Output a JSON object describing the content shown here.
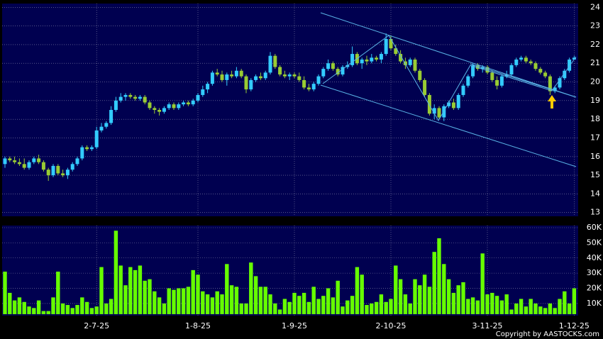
{
  "chart_data": {
    "type": "candlestick",
    "copyright": "Copyright by AASTOCKS.com",
    "categories": [
      null,
      null,
      null,
      null,
      null,
      null,
      null,
      null,
      null,
      null,
      null,
      null,
      null,
      null,
      null,
      null,
      null,
      null,
      null,
      "2-7-25",
      null,
      null,
      null,
      null,
      null,
      null,
      null,
      null,
      null,
      null,
      null,
      null,
      null,
      null,
      null,
      null,
      null,
      null,
      null,
      null,
      "1-8-25",
      null,
      null,
      null,
      null,
      null,
      null,
      null,
      null,
      null,
      null,
      null,
      null,
      null,
      null,
      null,
      null,
      null,
      null,
      null,
      "1-9-25",
      null,
      null,
      null,
      null,
      null,
      null,
      null,
      null,
      null,
      null,
      null,
      null,
      null,
      null,
      null,
      null,
      null,
      null,
      null,
      "2-10-25",
      null,
      null,
      null,
      null,
      null,
      null,
      null,
      null,
      null,
      null,
      null,
      null,
      null,
      null,
      null,
      null,
      null,
      null,
      null,
      "3-11-25",
      null,
      null,
      null,
      null,
      null,
      null,
      null,
      null,
      null,
      null,
      null,
      null,
      null,
      null,
      null,
      null,
      null,
      "1-12-25"
    ],
    "open": [
      15.6,
      15.9,
      15.8,
      15.7,
      15.6,
      15.4,
      15.7,
      15.9,
      15.7,
      15.3,
      15.0,
      15.5,
      15.1,
      15.0,
      15.3,
      15.6,
      15.9,
      16.5,
      16.4,
      16.5,
      17.4,
      17.6,
      17.8,
      18.5,
      19.0,
      19.2,
      19.3,
      19.2,
      19.1,
      19.2,
      18.9,
      18.6,
      18.5,
      18.4,
      18.6,
      18.8,
      18.6,
      18.8,
      18.9,
      18.8,
      19.0,
      19.3,
      19.6,
      19.9,
      20.5,
      20.4,
      20.1,
      20.4,
      20.3,
      20.6,
      20.3,
      19.6,
      20.1,
      20.3,
      20.2,
      20.5,
      21.4,
      20.8,
      20.4,
      20.3,
      20.4,
      20.3,
      20.1,
      19.7,
      19.6,
      19.9,
      20.3,
      20.7,
      21.0,
      20.7,
      20.4,
      20.8,
      20.9,
      21.5,
      21.0,
      21.2,
      21.1,
      21.3,
      21.2,
      21.5,
      22.3,
      21.8,
      21.5,
      21.1,
      20.9,
      21.2,
      20.6,
      20.1,
      19.3,
      18.3,
      18.6,
      18.1,
      18.7,
      18.9,
      18.6,
      19.3,
      19.8,
      20.3,
      20.9,
      20.7,
      20.8,
      20.5,
      20.1,
      19.8,
      20.3,
      20.4,
      20.9,
      21.2,
      21.3,
      21.1,
      21.0,
      20.7,
      20.5,
      20.3,
      19.5,
      19.7,
      20.2,
      20.6,
      21.2
    ],
    "high": [
      16.0,
      16.0,
      16.0,
      15.9,
      15.9,
      15.8,
      16.0,
      16.1,
      15.8,
      15.4,
      15.6,
      15.6,
      15.3,
      15.4,
      15.7,
      16.0,
      16.6,
      16.6,
      16.6,
      17.6,
      17.8,
      17.9,
      18.7,
      19.2,
      19.4,
      19.4,
      19.4,
      19.3,
      19.3,
      19.3,
      19.0,
      18.7,
      18.6,
      18.7,
      18.9,
      18.9,
      18.9,
      19.0,
      19.0,
      19.1,
      19.4,
      19.8,
      20.0,
      20.6,
      20.7,
      20.6,
      20.5,
      20.6,
      20.8,
      20.7,
      20.4,
      20.2,
      20.4,
      20.5,
      20.6,
      21.6,
      21.5,
      20.9,
      20.6,
      20.5,
      20.5,
      20.5,
      20.3,
      19.9,
      20.0,
      20.4,
      20.8,
      21.2,
      21.1,
      20.8,
      20.9,
      21.1,
      21.9,
      21.6,
      21.3,
      21.4,
      21.5,
      21.4,
      21.6,
      22.6,
      22.5,
      22.0,
      21.7,
      21.3,
      21.3,
      21.3,
      20.7,
      20.2,
      19.4,
      18.8,
      18.7,
      18.8,
      19.0,
      19.1,
      19.4,
      19.9,
      20.4,
      21.0,
      21.0,
      20.9,
      20.9,
      20.6,
      20.3,
      20.4,
      20.6,
      21.0,
      21.3,
      21.4,
      21.4,
      21.2,
      21.1,
      20.8,
      20.6,
      20.4,
      19.8,
      20.3,
      20.7,
      21.3,
      21.4
    ],
    "low": [
      15.4,
      15.7,
      15.6,
      15.5,
      15.3,
      15.3,
      15.6,
      15.6,
      15.2,
      14.7,
      14.9,
      15.0,
      14.9,
      14.8,
      15.2,
      15.5,
      15.8,
      16.3,
      16.3,
      16.4,
      17.3,
      17.5,
      17.7,
      18.4,
      18.9,
      19.0,
      19.1,
      19.0,
      19.0,
      18.8,
      18.5,
      18.3,
      18.2,
      18.3,
      18.5,
      18.5,
      18.5,
      18.7,
      18.7,
      18.7,
      18.9,
      19.2,
      19.4,
      19.8,
      20.3,
      20.0,
      19.8,
      20.2,
      20.2,
      20.2,
      19.4,
      19.5,
      20.0,
      20.1,
      20.1,
      20.4,
      20.7,
      20.3,
      20.2,
      20.1,
      20.2,
      20.0,
      19.6,
      19.5,
      19.5,
      19.8,
      20.2,
      20.6,
      20.6,
      20.3,
      20.3,
      20.7,
      20.8,
      20.9,
      20.7,
      20.9,
      21.0,
      21.1,
      21.0,
      21.4,
      21.7,
      21.4,
      21.0,
      20.7,
      20.8,
      20.5,
      20.0,
      19.2,
      18.2,
      18.0,
      18.0,
      17.9,
      18.6,
      18.5,
      18.5,
      19.2,
      19.7,
      20.2,
      20.6,
      20.5,
      20.4,
      20.0,
      19.6,
      19.7,
      20.2,
      20.3,
      20.8,
      21.1,
      21.0,
      20.9,
      20.6,
      20.4,
      20.2,
      19.3,
      19.4,
      19.6,
      20.1,
      20.5,
      21.2
    ],
    "close": [
      15.9,
      15.8,
      15.7,
      15.6,
      15.4,
      15.7,
      15.9,
      15.7,
      15.3,
      15.0,
      15.5,
      15.1,
      15.0,
      15.3,
      15.6,
      15.9,
      16.5,
      16.4,
      16.5,
      17.4,
      17.6,
      17.8,
      18.5,
      19.0,
      19.2,
      19.3,
      19.2,
      19.1,
      19.2,
      18.9,
      18.6,
      18.5,
      18.4,
      18.6,
      18.8,
      18.6,
      18.8,
      18.9,
      18.8,
      19.0,
      19.3,
      19.6,
      19.9,
      20.5,
      20.4,
      20.1,
      20.4,
      20.3,
      20.6,
      20.3,
      19.6,
      20.1,
      20.3,
      20.2,
      20.5,
      21.4,
      20.8,
      20.4,
      20.3,
      20.4,
      20.3,
      20.1,
      19.7,
      19.6,
      19.9,
      20.3,
      20.7,
      21.0,
      20.7,
      20.4,
      20.8,
      20.9,
      21.5,
      21.0,
      21.2,
      21.1,
      21.3,
      21.2,
      21.5,
      22.3,
      21.8,
      21.5,
      21.1,
      20.9,
      21.2,
      20.6,
      20.1,
      19.3,
      18.3,
      18.6,
      18.1,
      18.7,
      18.9,
      18.6,
      19.3,
      19.8,
      20.3,
      20.9,
      20.7,
      20.8,
      20.5,
      20.1,
      19.8,
      20.3,
      20.4,
      20.9,
      21.2,
      21.3,
      21.1,
      21.0,
      20.7,
      20.5,
      20.3,
      19.5,
      19.7,
      20.2,
      20.6,
      21.2,
      21.3
    ],
    "volume": [
      31000,
      17000,
      12000,
      14000,
      11000,
      8000,
      7000,
      12000,
      5000,
      5000,
      14000,
      31000,
      10000,
      9000,
      7000,
      9000,
      14000,
      11000,
      7000,
      8000,
      34000,
      10000,
      13000,
      58000,
      35000,
      22000,
      34000,
      32000,
      35000,
      25000,
      26000,
      18000,
      14000,
      10000,
      20000,
      19000,
      20000,
      20000,
      21000,
      32000,
      29000,
      18000,
      16000,
      14000,
      18000,
      16000,
      36000,
      22000,
      21000,
      10000,
      10000,
      37000,
      28000,
      21000,
      21000,
      16000,
      10000,
      6000,
      13000,
      11000,
      17000,
      15000,
      17000,
      11000,
      21000,
      13000,
      15000,
      20000,
      14000,
      25000,
      8000,
      12000,
      15000,
      34000,
      29000,
      9000,
      10000,
      11000,
      16000,
      11000,
      13000,
      35000,
      26000,
      16000,
      10000,
      26000,
      22000,
      29000,
      21000,
      44000,
      53000,
      36000,
      26000,
      17000,
      22000,
      24000,
      13000,
      14000,
      12000,
      43000,
      16000,
      17000,
      15000,
      12000,
      16000,
      6000,
      10000,
      13000,
      8000,
      13000,
      10000,
      8000,
      7000,
      10000,
      7000,
      13000,
      18000,
      10000,
      20000
    ],
    "up_color": "#33ccff",
    "down_color": "#99cc33",
    "volume_color": "#66ff00",
    "ylim": [
      12.8,
      24.2
    ],
    "yticks": [
      13,
      14,
      15,
      16,
      17,
      18,
      19,
      20,
      21,
      22,
      23,
      24
    ],
    "y2lim": [
      2000,
      61400
    ],
    "y2ticks": [
      {
        "value": 10000,
        "label": "10K"
      },
      {
        "value": 20000,
        "label": "20K"
      },
      {
        "value": 30000,
        "label": "30K"
      },
      {
        "value": 40000,
        "label": "40K"
      },
      {
        "value": 50000,
        "label": "50K"
      },
      {
        "value": 60000,
        "label": "60K"
      }
    ],
    "grid": true
  }
}
